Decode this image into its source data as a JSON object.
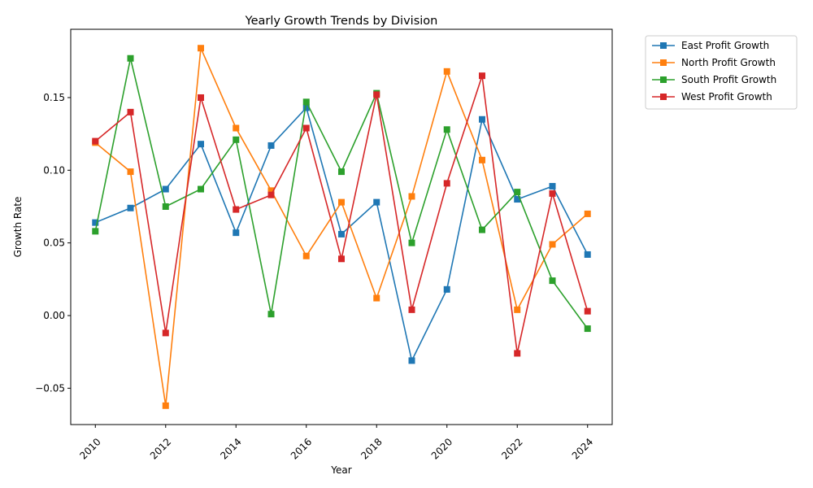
{
  "chart_data": {
    "type": "line",
    "title": "Yearly Growth Trends by Division",
    "xlabel": "Year",
    "ylabel": "Growth Rate",
    "x": [
      2010,
      2011,
      2012,
      2013,
      2014,
      2015,
      2016,
      2017,
      2018,
      2019,
      2020,
      2021,
      2022,
      2023,
      2024
    ],
    "xlim": [
      2009.3,
      2024.7
    ],
    "ylim": [
      -0.075,
      0.197
    ],
    "xticks": [
      2010,
      2012,
      2014,
      2016,
      2018,
      2020,
      2022,
      2024
    ],
    "xtick_labels": [
      "2010",
      "2012",
      "2014",
      "2016",
      "2018",
      "2020",
      "2022",
      "2024"
    ],
    "yticks": [
      -0.05,
      0.0,
      0.05,
      0.1,
      0.15
    ],
    "ytick_labels": [
      "−0.05",
      "0.00",
      "0.05",
      "0.10",
      "0.15"
    ],
    "grid": false,
    "legend_position": "outside-top-right",
    "marker": "square",
    "series": [
      {
        "name": "East Profit Growth",
        "color": "#1f77b4",
        "values": [
          0.064,
          0.074,
          0.087,
          0.118,
          0.057,
          0.117,
          0.143,
          0.056,
          0.078,
          -0.031,
          0.018,
          0.135,
          0.08,
          0.089,
          0.042
        ]
      },
      {
        "name": "North Profit Growth",
        "color": "#ff7f0e",
        "values": [
          0.119,
          0.099,
          -0.062,
          0.184,
          0.129,
          0.086,
          0.041,
          0.078,
          0.012,
          0.082,
          0.168,
          0.107,
          0.004,
          0.049,
          0.07
        ]
      },
      {
        "name": "South Profit Growth",
        "color": "#2ca02c",
        "values": [
          0.058,
          0.177,
          0.075,
          0.087,
          0.121,
          0.001,
          0.147,
          0.099,
          0.153,
          0.05,
          0.128,
          0.059,
          0.085,
          0.024,
          -0.009
        ]
      },
      {
        "name": "West Profit Growth",
        "color": "#d62728",
        "values": [
          0.12,
          0.14,
          -0.012,
          0.15,
          0.073,
          0.083,
          0.129,
          0.039,
          0.152,
          0.004,
          0.091,
          0.165,
          -0.026,
          0.084,
          0.003
        ]
      }
    ]
  }
}
